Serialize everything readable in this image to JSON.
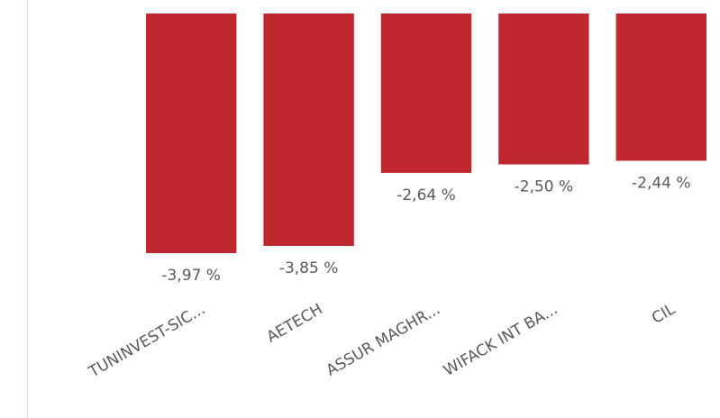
{
  "chart_data": {
    "type": "bar",
    "categories": [
      "TUNINVEST-SIC...",
      "AETECH",
      "ASSUR MAGHR...",
      "WIFACK INT BA...",
      "CIL"
    ],
    "values": [
      -3.97,
      -3.85,
      -2.64,
      -2.5,
      -2.44
    ],
    "value_labels": [
      "-3,97 %",
      "-3,85 %",
      "-2,64 %",
      "-2,50 %",
      "-2,44 %"
    ],
    "color": "#c0272f",
    "ylim": [
      -4,
      0
    ]
  }
}
